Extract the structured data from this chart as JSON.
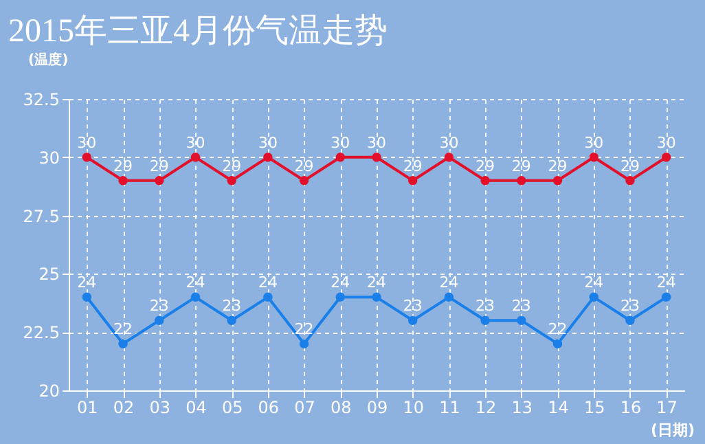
{
  "chart_data": {
    "type": "line",
    "title": "2015年三亚4月份气温走势",
    "ylabel": "(温度)",
    "xlabel": "(日期)",
    "categories": [
      "01",
      "02",
      "03",
      "04",
      "05",
      "06",
      "07",
      "08",
      "09",
      "10",
      "11",
      "12",
      "13",
      "14",
      "15",
      "16",
      "17"
    ],
    "series": [
      {
        "color": "#e3102c",
        "values": [
          30,
          29,
          29,
          30,
          29,
          30,
          29,
          30,
          30,
          29,
          30,
          29,
          29,
          29,
          30,
          29,
          30
        ]
      },
      {
        "color": "#1a7fe8",
        "values": [
          24,
          22,
          23,
          24,
          23,
          24,
          22,
          24,
          24,
          23,
          24,
          23,
          23,
          22,
          24,
          23,
          24
        ]
      }
    ],
    "ylim": [
      20,
      32.5
    ],
    "yticks": [
      20,
      22.5,
      25,
      27.5,
      30,
      32.5
    ],
    "grid": true,
    "marker": "circle",
    "line_style": "solid",
    "data_labels": true
  }
}
